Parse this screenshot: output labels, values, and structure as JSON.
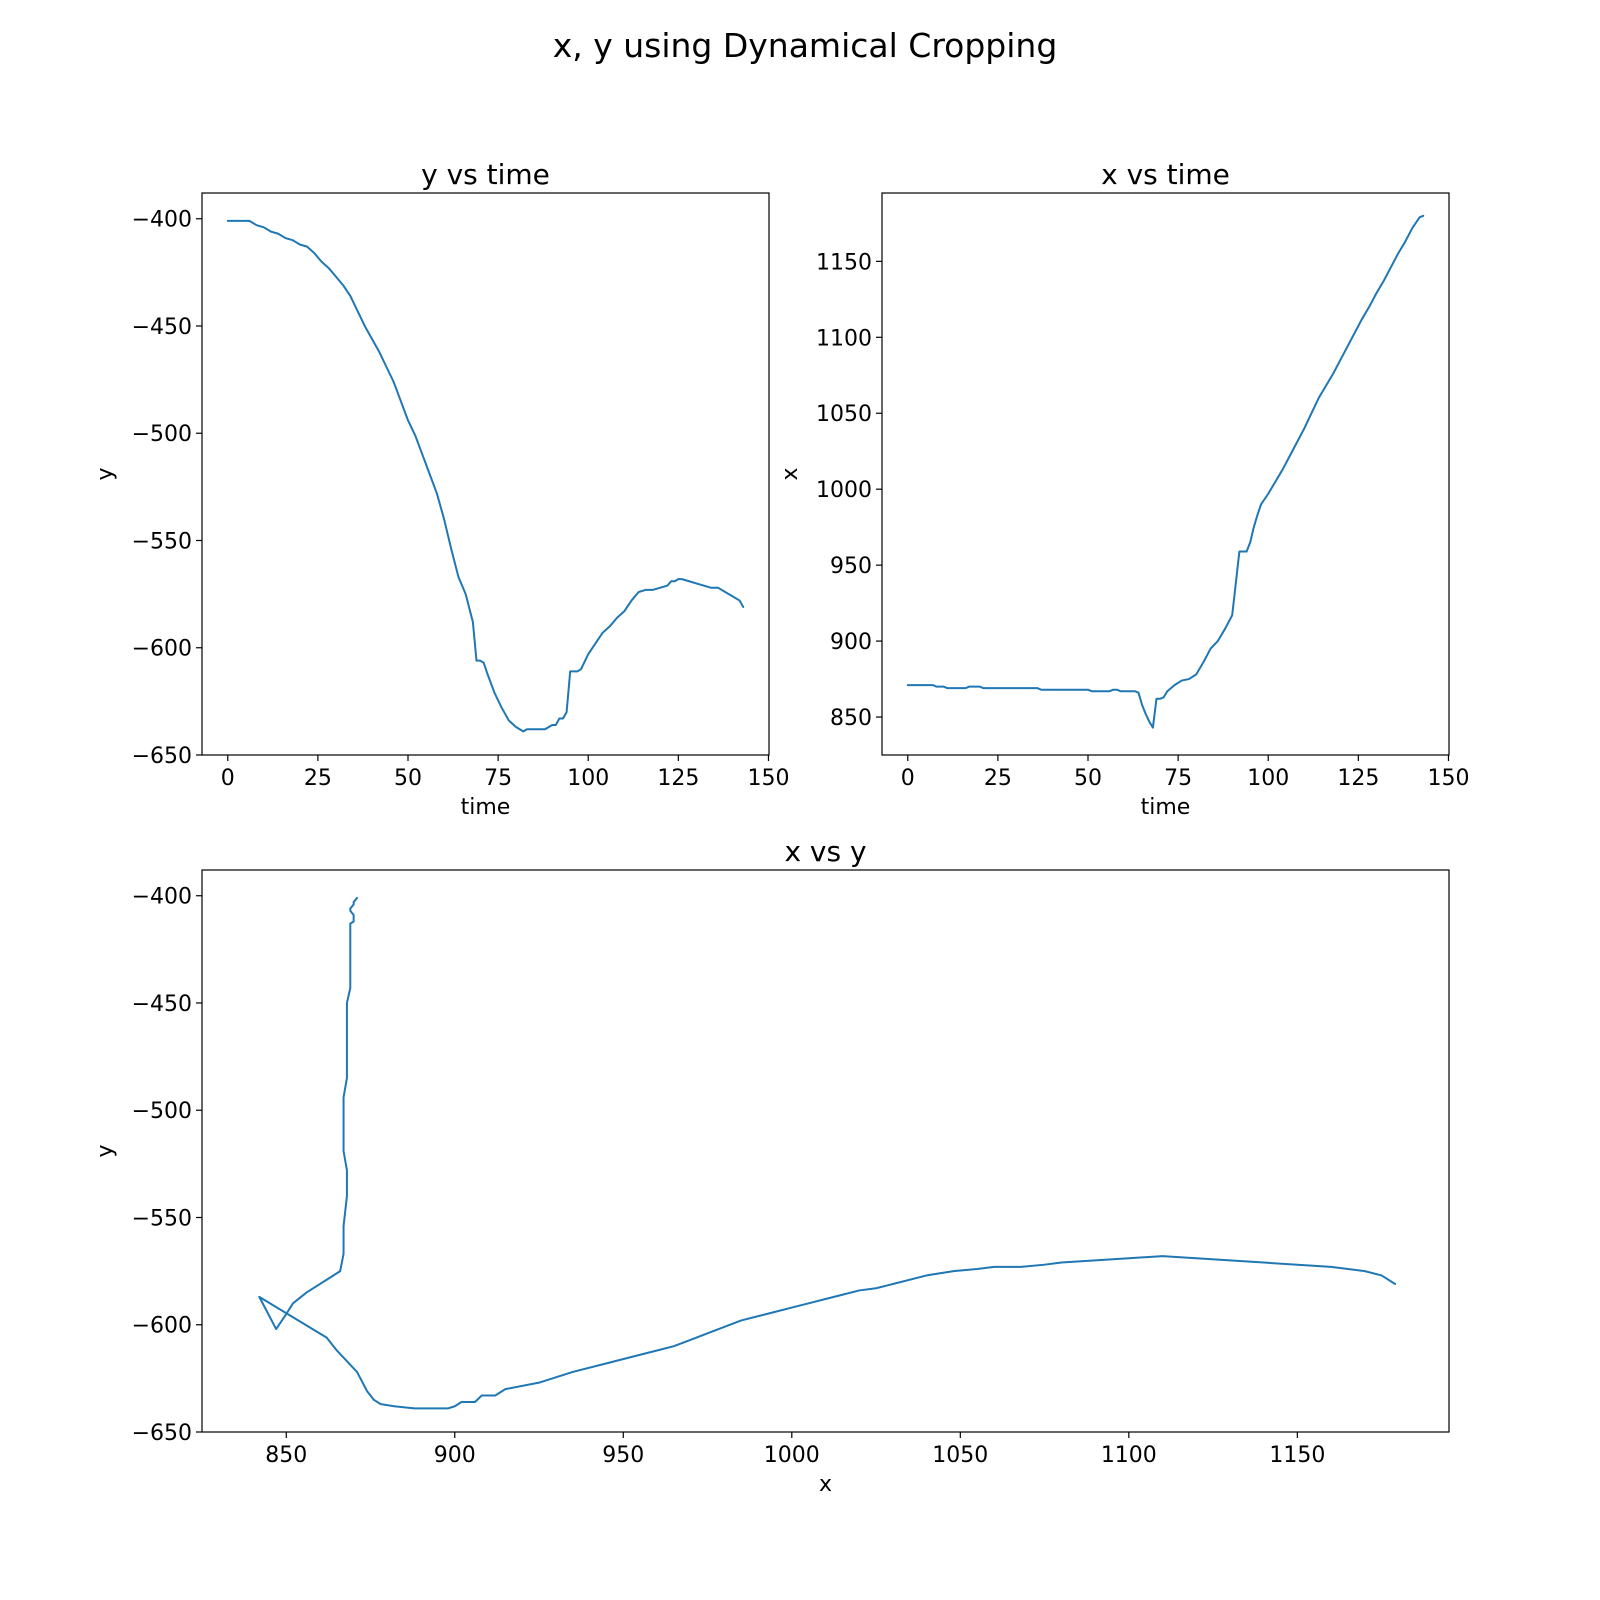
{
  "figure": {
    "suptitle": "x, y using Dynamical Cropping"
  },
  "chart_data": [
    {
      "type": "line",
      "title": "y vs time",
      "xlabel": "time",
      "ylabel": "y",
      "xlim": [
        -7.15,
        150.15
      ],
      "ylim": [
        -650,
        -388
      ],
      "xticks": [
        0,
        25,
        50,
        75,
        100,
        125,
        150
      ],
      "yticks": [
        -400,
        -450,
        -500,
        -550,
        -600,
        -650
      ],
      "grid": false,
      "color": "#1f77b4",
      "series": [
        {
          "x": [
            0,
            6,
            8,
            10,
            12,
            14,
            16,
            18,
            20,
            22,
            24,
            26,
            28,
            30,
            32,
            34,
            36,
            38,
            40,
            42,
            44,
            46,
            48,
            50,
            52,
            54,
            56,
            58,
            60,
            62,
            64,
            66,
            68,
            69,
            70,
            71,
            72,
            74,
            76,
            78,
            80,
            82,
            83,
            84,
            86,
            88,
            90,
            91,
            92,
            93,
            94,
            95,
            96,
            97,
            98,
            100,
            102,
            104,
            106,
            108,
            110,
            112,
            114,
            116,
            118,
            120,
            122,
            123,
            124,
            125,
            126,
            128,
            130,
            132,
            134,
            136,
            138,
            140,
            142,
            143
          ],
          "y": [
            -401,
            -401,
            -403,
            -404,
            -406,
            -407,
            -409,
            -410,
            -412,
            -413,
            -416,
            -420,
            -423,
            -427,
            -431,
            -436,
            -443,
            -450,
            -456,
            -462,
            -469,
            -476,
            -485,
            -494,
            -501,
            -510,
            -519,
            -528,
            -540,
            -554,
            -567,
            -575,
            -588,
            -606,
            -606,
            -607,
            -612,
            -621,
            -628,
            -634,
            -637,
            -639,
            -638,
            -638,
            -638,
            -638,
            -636,
            -636,
            -633,
            -633,
            -630,
            -611,
            -611,
            -611,
            -610,
            -603,
            -598,
            -593,
            -590,
            -586,
            -583,
            -578,
            -574,
            -573,
            -573,
            -572,
            -571,
            -569,
            -569,
            -568,
            -568,
            -569,
            -570,
            -571,
            -572,
            -572,
            -574,
            -576,
            -578,
            -581
          ]
        }
      ]
    },
    {
      "type": "line",
      "title": "x vs time",
      "xlabel": "time",
      "ylabel": "x",
      "xlim": [
        -7.15,
        150.15
      ],
      "ylim": [
        825,
        1195
      ],
      "xticks": [
        0,
        25,
        50,
        75,
        100,
        125,
        150
      ],
      "yticks": [
        850,
        900,
        950,
        1000,
        1050,
        1100,
        1150
      ],
      "grid": false,
      "color": "#1f77b4",
      "series": [
        {
          "x": [
            0,
            7,
            8,
            10,
            11,
            16,
            17,
            20,
            21,
            36,
            37,
            50,
            51,
            56,
            57,
            58,
            59,
            63,
            64,
            65,
            66,
            67,
            68,
            69,
            70,
            71,
            72,
            74,
            76,
            78,
            80,
            82,
            84,
            86,
            88,
            90,
            92,
            94,
            95,
            96,
            97,
            98,
            100,
            102,
            104,
            106,
            108,
            110,
            112,
            114,
            116,
            118,
            120,
            122,
            124,
            126,
            128,
            130,
            132,
            134,
            136,
            138,
            140,
            142,
            143
          ],
          "y": [
            871,
            871,
            870,
            870,
            869,
            869,
            870,
            870,
            869,
            869,
            868,
            868,
            867,
            867,
            868,
            868,
            867,
            867,
            866,
            858,
            852,
            847,
            843,
            862,
            862,
            863,
            867,
            871,
            874,
            875,
            878,
            886,
            895,
            900,
            908,
            917,
            959,
            959,
            965,
            975,
            983,
            990,
            997,
            1005,
            1013,
            1022,
            1031,
            1040,
            1050,
            1060,
            1068,
            1076,
            1085,
            1094,
            1103,
            1112,
            1120,
            1129,
            1137,
            1146,
            1155,
            1163,
            1172,
            1179,
            1180
          ]
        }
      ]
    },
    {
      "type": "line",
      "title": "x vs y",
      "xlabel": "x",
      "ylabel": "y",
      "xlim": [
        825,
        1195
      ],
      "ylim": [
        -650,
        -388
      ],
      "xticks": [
        850,
        900,
        950,
        1000,
        1050,
        1100,
        1150
      ],
      "yticks": [
        -400,
        -450,
        -500,
        -550,
        -600,
        -650
      ],
      "grid": false,
      "color": "#1f77b4",
      "series": [
        {
          "x": [
            871,
            870,
            870,
            869,
            869,
            870,
            870,
            869,
            869,
            868,
            868,
            868,
            867,
            867,
            868,
            868,
            867,
            867,
            866,
            856,
            852,
            850,
            847,
            842,
            862,
            865,
            868,
            871,
            874,
            876,
            878,
            882,
            888,
            898,
            900,
            902,
            906,
            908,
            912,
            915,
            925,
            935,
            945,
            955,
            960,
            965,
            970,
            975,
            985,
            995,
            1000,
            1005,
            1010,
            1015,
            1020,
            1025,
            1030,
            1040,
            1048,
            1055,
            1060,
            1068,
            1075,
            1080,
            1090,
            1100,
            1110,
            1120,
            1130,
            1140,
            1150,
            1160,
            1170,
            1175,
            1179
          ],
          "y": [
            -401,
            -403,
            -404,
            -406,
            -407,
            -409,
            -412,
            -413,
            -443,
            -450,
            -470,
            -485,
            -494,
            -519,
            -528,
            -540,
            -554,
            -567,
            -575,
            -585,
            -590,
            -595,
            -602,
            -587,
            -606,
            -612,
            -617,
            -622,
            -631,
            -635,
            -637,
            -638,
            -639,
            -639,
            -638,
            -636,
            -636,
            -633,
            -633,
            -630,
            -627,
            -622,
            -618,
            -614,
            -612,
            -610,
            -607,
            -604,
            -598,
            -594,
            -592,
            -590,
            -588,
            -586,
            -584,
            -583,
            -581,
            -577,
            -575,
            -574,
            -573,
            -573,
            -572,
            -571,
            -570,
            -569,
            -568,
            -569,
            -570,
            -571,
            -572,
            -573,
            -575,
            -577,
            -581
          ]
        }
      ]
    }
  ]
}
